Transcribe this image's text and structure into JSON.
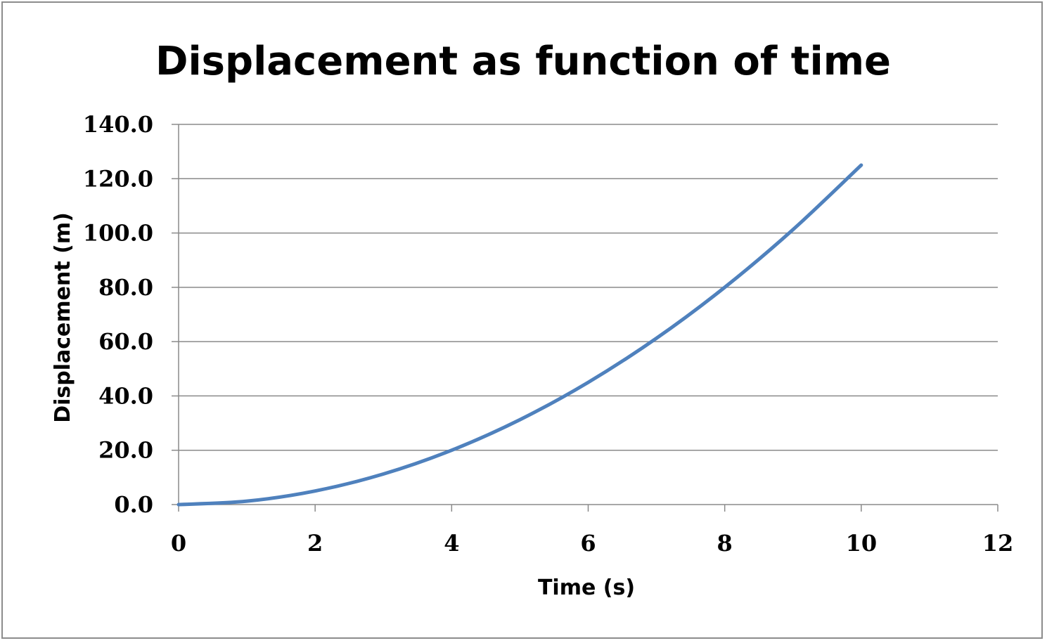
{
  "chart_data": {
    "type": "line",
    "title": "Displacement as function of time",
    "xlabel": "Time (s)",
    "ylabel": "Displacement (m)",
    "xlim": [
      0,
      12
    ],
    "ylim": [
      0,
      140
    ],
    "x_ticks": [
      "0",
      "2",
      "4",
      "6",
      "8",
      "10",
      "12"
    ],
    "y_ticks": [
      "0.0",
      "20.0",
      "40.0",
      "60.0",
      "80.0",
      "100.0",
      "120.0",
      "140.0"
    ],
    "grid": "horizontal",
    "legend": "none",
    "series": [
      {
        "color": "#4f81bd",
        "x": [
          0,
          1,
          2,
          3,
          4,
          5,
          6,
          7,
          8,
          9,
          10
        ],
        "y": [
          0.0,
          1.25,
          5.0,
          11.25,
          20.0,
          31.25,
          45.0,
          61.25,
          80.0,
          101.25,
          125.0
        ]
      }
    ]
  }
}
